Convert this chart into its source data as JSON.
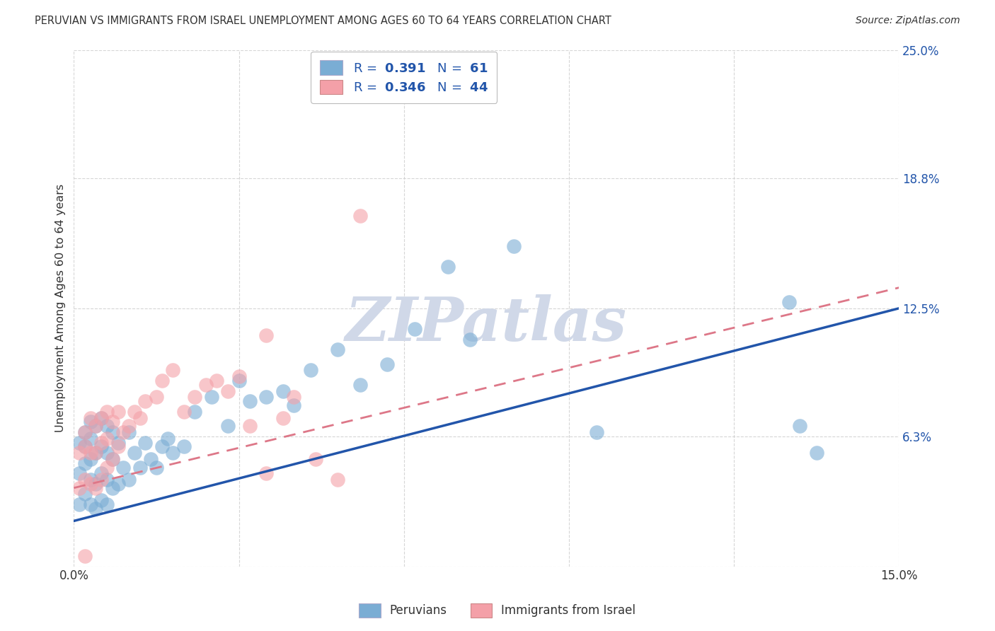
{
  "title": "PERUVIAN VS IMMIGRANTS FROM ISRAEL UNEMPLOYMENT AMONG AGES 60 TO 64 YEARS CORRELATION CHART",
  "source": "Source: ZipAtlas.com",
  "ylabel": "Unemployment Among Ages 60 to 64 years",
  "xlim": [
    0.0,
    0.15
  ],
  "ylim": [
    0.0,
    0.25
  ],
  "xtick_positions": [
    0.0,
    0.03,
    0.06,
    0.09,
    0.12,
    0.15
  ],
  "xtick_labels": [
    "0.0%",
    "",
    "",
    "",
    "",
    "15.0%"
  ],
  "ytick_positions": [
    0.0,
    0.063,
    0.125,
    0.188,
    0.25
  ],
  "ytick_labels": [
    "",
    "6.3%",
    "12.5%",
    "18.8%",
    "25.0%"
  ],
  "background_color": "#ffffff",
  "grid_color": "#cccccc",
  "blue_scatter_color": "#7aadd4",
  "pink_scatter_color": "#f4a0a8",
  "blue_line_color": "#2255aa",
  "pink_line_color": "#dd7788",
  "text_color": "#333333",
  "axis_label_color": "#2255aa",
  "watermark_color": "#d0d8e8",
  "watermark_text": "ZIPatlas",
  "blue_line_x": [
    0.0,
    0.15
  ],
  "blue_line_y": [
    0.022,
    0.125
  ],
  "pink_line_x": [
    0.0,
    0.15
  ],
  "pink_line_y": [
    0.038,
    0.135
  ],
  "peruvians_x": [
    0.001,
    0.001,
    0.001,
    0.002,
    0.002,
    0.002,
    0.002,
    0.003,
    0.003,
    0.003,
    0.003,
    0.003,
    0.004,
    0.004,
    0.004,
    0.004,
    0.005,
    0.005,
    0.005,
    0.005,
    0.006,
    0.006,
    0.006,
    0.006,
    0.007,
    0.007,
    0.007,
    0.008,
    0.008,
    0.009,
    0.01,
    0.01,
    0.011,
    0.012,
    0.013,
    0.014,
    0.015,
    0.016,
    0.017,
    0.018,
    0.02,
    0.022,
    0.025,
    0.028,
    0.03,
    0.032,
    0.035,
    0.038,
    0.04,
    0.043,
    0.048,
    0.052,
    0.057,
    0.062,
    0.068,
    0.072,
    0.08,
    0.095,
    0.13,
    0.132,
    0.135
  ],
  "peruvians_y": [
    0.03,
    0.045,
    0.06,
    0.035,
    0.05,
    0.058,
    0.065,
    0.03,
    0.042,
    0.052,
    0.062,
    0.07,
    0.028,
    0.04,
    0.055,
    0.068,
    0.032,
    0.045,
    0.058,
    0.072,
    0.03,
    0.042,
    0.055,
    0.068,
    0.038,
    0.052,
    0.065,
    0.04,
    0.06,
    0.048,
    0.042,
    0.065,
    0.055,
    0.048,
    0.06,
    0.052,
    0.048,
    0.058,
    0.062,
    0.055,
    0.058,
    0.075,
    0.082,
    0.068,
    0.09,
    0.08,
    0.082,
    0.085,
    0.078,
    0.095,
    0.105,
    0.088,
    0.098,
    0.115,
    0.145,
    0.11,
    0.155,
    0.065,
    0.128,
    0.068,
    0.055
  ],
  "israel_x": [
    0.001,
    0.001,
    0.002,
    0.002,
    0.002,
    0.003,
    0.003,
    0.003,
    0.004,
    0.004,
    0.004,
    0.005,
    0.005,
    0.005,
    0.006,
    0.006,
    0.006,
    0.007,
    0.007,
    0.008,
    0.008,
    0.009,
    0.01,
    0.011,
    0.012,
    0.013,
    0.015,
    0.016,
    0.018,
    0.02,
    0.022,
    0.024,
    0.026,
    0.028,
    0.03,
    0.032,
    0.035,
    0.038,
    0.04,
    0.044,
    0.048,
    0.052,
    0.035,
    0.002
  ],
  "israel_y": [
    0.038,
    0.055,
    0.042,
    0.058,
    0.065,
    0.04,
    0.055,
    0.072,
    0.038,
    0.055,
    0.068,
    0.042,
    0.06,
    0.072,
    0.048,
    0.062,
    0.075,
    0.052,
    0.07,
    0.058,
    0.075,
    0.065,
    0.068,
    0.075,
    0.072,
    0.08,
    0.082,
    0.09,
    0.095,
    0.075,
    0.082,
    0.088,
    0.09,
    0.085,
    0.092,
    0.068,
    0.045,
    0.072,
    0.082,
    0.052,
    0.042,
    0.17,
    0.112,
    0.005
  ]
}
